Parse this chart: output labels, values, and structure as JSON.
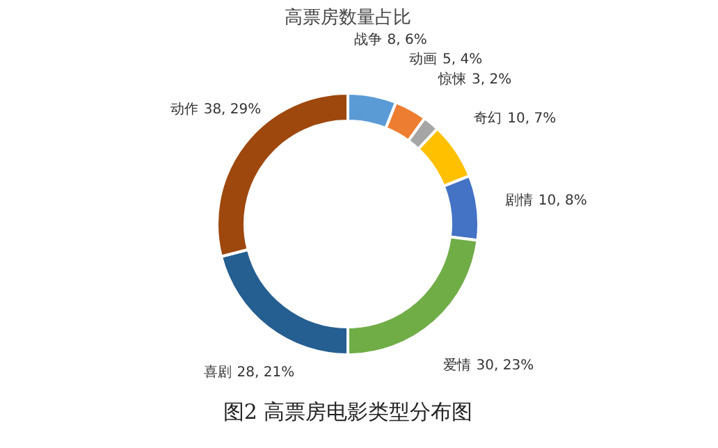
{
  "chart_data": {
    "type": "donut",
    "title": "高票房数量占比",
    "categories": [
      "战争",
      "动画",
      "惊悚",
      "奇幻",
      "剧情",
      "爱情",
      "喜剧",
      "动作"
    ],
    "values": [
      6,
      4,
      2,
      7,
      8,
      23,
      21,
      29
    ],
    "colors": [
      "#5b9bd5",
      "#ed7d31",
      "#a5a5a5",
      "#ffc000",
      "#4472c4",
      "#70ad47",
      "#255e91",
      "#9e480e"
    ],
    "value_labels": [
      "8, 6%",
      "5, 4%",
      "3, 2%",
      "10, 7%",
      "10, 8%",
      "30, 23%",
      "28, 21%",
      "38, 29%"
    ],
    "annotations": [
      "图2 高票房电影类型分布图"
    ],
    "legend": false
  }
}
